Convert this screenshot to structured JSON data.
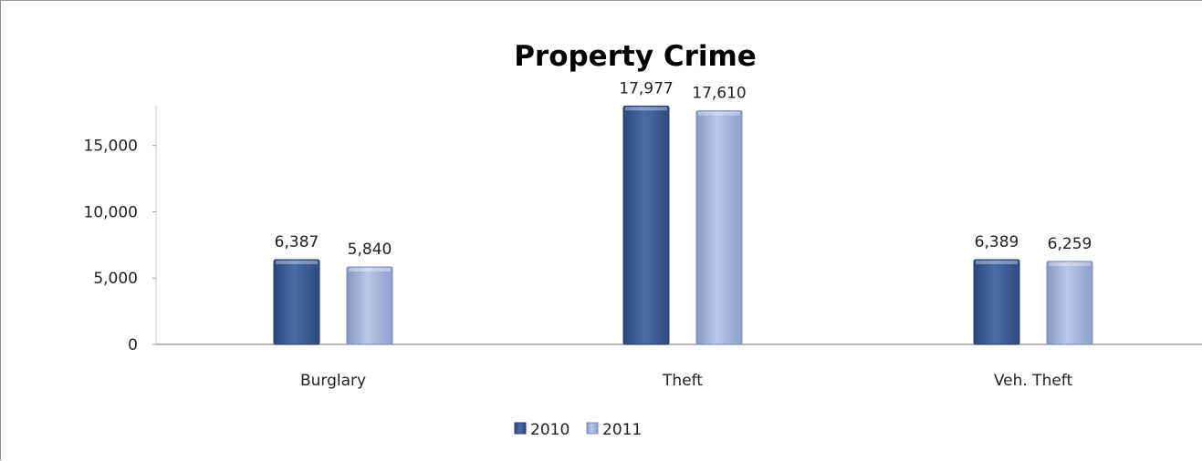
{
  "chart_data": {
    "type": "bar",
    "title": "Property Crime",
    "categories": [
      "Burglary",
      "Theft",
      "Veh. Theft"
    ],
    "series": [
      {
        "name": "2010",
        "values": [
          6387,
          17977,
          6389
        ],
        "labels": [
          "6,387",
          "17,977",
          "6,389"
        ],
        "color": "#3e5f96"
      },
      {
        "name": "2011",
        "values": [
          5840,
          17610,
          6259
        ],
        "labels": [
          "5,840",
          "17,610",
          "6,259"
        ],
        "color": "#9fb0d8"
      }
    ],
    "yticks": [
      0,
      5000,
      10000,
      15000
    ],
    "ytick_labels": [
      "0",
      "5,000",
      "10,000",
      "15,000"
    ],
    "ylim": [
      0,
      18000
    ],
    "legend_position": "bottom",
    "grid": false
  }
}
